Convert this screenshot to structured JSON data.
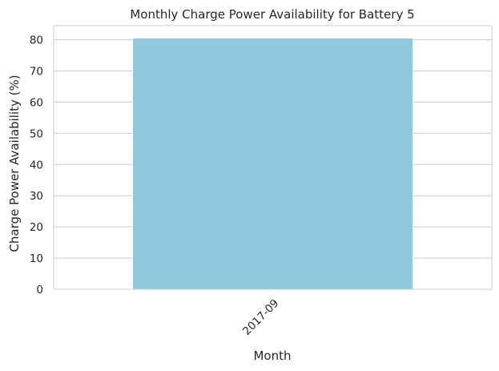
{
  "chart_data": {
    "type": "bar",
    "title": "Monthly Charge Power Availability for Battery 5",
    "xlabel": "Month",
    "ylabel": "Charge Power Availability (%)",
    "categories": [
      "2017-09"
    ],
    "values": [
      80.5
    ],
    "ylim": [
      0,
      84.5
    ],
    "yticks": [
      "0",
      "10",
      "20",
      "30",
      "40",
      "50",
      "60",
      "70",
      "80"
    ],
    "grid": "y-axis horizontal lines",
    "colors": {
      "bar": "#92c8de",
      "grid": "#cccccc",
      "axes_frame": "#cccccc"
    }
  }
}
